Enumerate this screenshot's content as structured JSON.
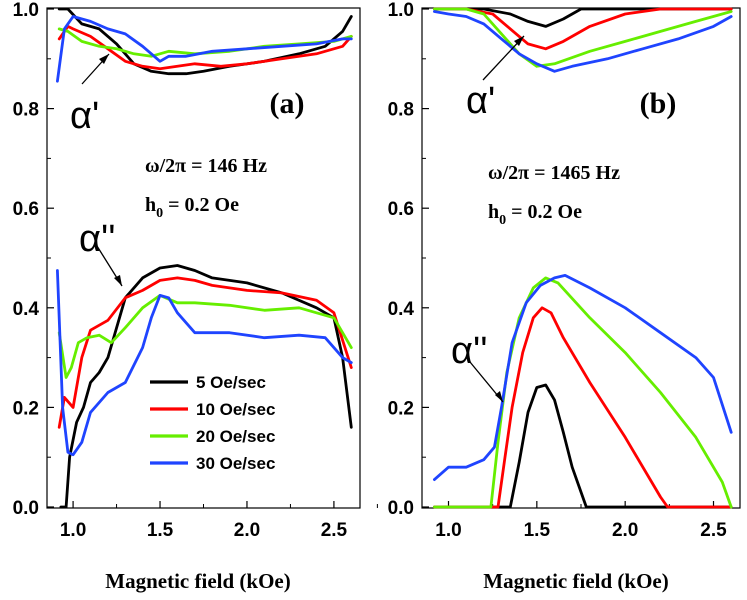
{
  "chart_data": [
    {
      "type": "line",
      "panel_label": "(a)",
      "xlabel": "Magnetic field (kOe)",
      "xlim": [
        0.85,
        2.65
      ],
      "ylim": [
        0,
        1.0
      ],
      "xticks": [
        "1.0",
        "1.5",
        "2.0",
        "2.5"
      ],
      "yticks": [
        "0.0",
        "0.2",
        "0.4",
        "0.6",
        "0.8",
        "1.0"
      ],
      "annotations": [
        "α'",
        "α''",
        "ω/2π = 146 Hz",
        "h0 = 0.2 Oe"
      ],
      "legend": [
        "5 Oe/sec",
        "10 Oe/sec",
        "20 Oe/sec",
        "30 Oe/sec"
      ],
      "series": [
        {
          "name": "5 Oe/sec",
          "color": "#000000",
          "part": "alpha_prime",
          "x": [
            0.92,
            0.97,
            1.05,
            1.15,
            1.25,
            1.35,
            1.45,
            1.55,
            1.65,
            1.75,
            1.9,
            2.1,
            2.3,
            2.45,
            2.55,
            2.6
          ],
          "y": [
            1.0,
            1.0,
            0.97,
            0.96,
            0.93,
            0.89,
            0.875,
            0.87,
            0.87,
            0.875,
            0.885,
            0.895,
            0.91,
            0.925,
            0.955,
            0.985
          ]
        },
        {
          "name": "10 Oe/sec",
          "color": "#ff0000",
          "part": "alpha_prime",
          "x": [
            0.92,
            0.97,
            1.0,
            1.1,
            1.2,
            1.3,
            1.4,
            1.5,
            1.6,
            1.7,
            1.85,
            2.0,
            2.2,
            2.4,
            2.55,
            2.6
          ],
          "y": [
            0.94,
            0.965,
            0.96,
            0.945,
            0.92,
            0.895,
            0.885,
            0.88,
            0.885,
            0.89,
            0.885,
            0.89,
            0.9,
            0.91,
            0.925,
            0.945
          ]
        },
        {
          "name": "20 Oe/sec",
          "color": "#66ee00",
          "part": "alpha_prime",
          "x": [
            0.92,
            0.97,
            1.05,
            1.15,
            1.25,
            1.35,
            1.45,
            1.55,
            1.7,
            1.9,
            2.1,
            2.3,
            2.5,
            2.6
          ],
          "y": [
            0.96,
            0.955,
            0.935,
            0.925,
            0.92,
            0.91,
            0.905,
            0.915,
            0.91,
            0.915,
            0.925,
            0.93,
            0.935,
            0.945
          ]
        },
        {
          "name": "30 Oe/sec",
          "color": "#1f44ff",
          "part": "alpha_prime",
          "x": [
            0.91,
            0.95,
            1.0,
            1.1,
            1.2,
            1.3,
            1.4,
            1.5,
            1.55,
            1.65,
            1.8,
            2.0,
            2.2,
            2.4,
            2.55,
            2.6
          ],
          "y": [
            0.855,
            0.96,
            0.985,
            0.975,
            0.96,
            0.95,
            0.925,
            0.895,
            0.905,
            0.905,
            0.915,
            0.92,
            0.925,
            0.93,
            0.94,
            0.94
          ]
        },
        {
          "name": "5 Oe/sec",
          "color": "#000000",
          "part": "alpha_double_prime",
          "x": [
            0.93,
            0.96,
            0.98,
            1.02,
            1.06,
            1.1,
            1.15,
            1.2,
            1.3,
            1.4,
            1.5,
            1.6,
            1.7,
            1.8,
            2.0,
            2.2,
            2.4,
            2.5,
            2.55,
            2.6
          ],
          "y": [
            0.0,
            0.0,
            0.1,
            0.17,
            0.2,
            0.25,
            0.27,
            0.3,
            0.42,
            0.46,
            0.48,
            0.485,
            0.475,
            0.46,
            0.45,
            0.43,
            0.4,
            0.38,
            0.3,
            0.16
          ]
        },
        {
          "name": "10 Oe/sec",
          "color": "#ff0000",
          "part": "alpha_double_prime",
          "x": [
            0.92,
            0.95,
            1.0,
            1.05,
            1.1,
            1.2,
            1.3,
            1.4,
            1.5,
            1.6,
            1.7,
            1.8,
            2.0,
            2.2,
            2.4,
            2.5,
            2.6
          ],
          "y": [
            0.16,
            0.22,
            0.2,
            0.3,
            0.355,
            0.375,
            0.42,
            0.435,
            0.455,
            0.46,
            0.455,
            0.445,
            0.435,
            0.43,
            0.415,
            0.39,
            0.28
          ]
        },
        {
          "name": "20 Oe/sec",
          "color": "#66ee00",
          "part": "alpha_double_prime",
          "x": [
            0.92,
            0.96,
            0.99,
            1.03,
            1.08,
            1.15,
            1.22,
            1.3,
            1.4,
            1.5,
            1.6,
            1.7,
            1.9,
            2.1,
            2.3,
            2.5,
            2.6
          ],
          "y": [
            0.35,
            0.26,
            0.28,
            0.33,
            0.34,
            0.345,
            0.33,
            0.36,
            0.4,
            0.425,
            0.41,
            0.41,
            0.405,
            0.395,
            0.4,
            0.38,
            0.32
          ]
        },
        {
          "name": "30 Oe/sec",
          "color": "#1f44ff",
          "part": "alpha_double_prime",
          "x": [
            0.91,
            0.94,
            0.97,
            1.0,
            1.05,
            1.1,
            1.2,
            1.3,
            1.4,
            1.45,
            1.5,
            1.55,
            1.6,
            1.7,
            1.9,
            2.1,
            2.3,
            2.45,
            2.55,
            2.6
          ],
          "y": [
            0.475,
            0.2,
            0.11,
            0.105,
            0.13,
            0.19,
            0.23,
            0.25,
            0.32,
            0.38,
            0.425,
            0.42,
            0.39,
            0.35,
            0.35,
            0.34,
            0.345,
            0.34,
            0.3,
            0.29
          ]
        }
      ]
    },
    {
      "type": "line",
      "panel_label": "(b)",
      "xlabel": "Magnetic field (kOe)",
      "xlim": [
        0.85,
        2.65
      ],
      "ylim": [
        0,
        1.0
      ],
      "xticks": [
        "1.0",
        "1.5",
        "2.0",
        "2.5"
      ],
      "yticks": [
        "0.0",
        "0.2",
        "0.4",
        "0.6",
        "0.8",
        "1.0"
      ],
      "annotations": [
        "α'",
        "α''",
        "ω/2π = 1465 Hz",
        "h0 = 0.2 Oe"
      ],
      "series": [
        {
          "name": "5 Oe/sec",
          "color": "#000000",
          "part": "alpha_prime",
          "x": [
            0.92,
            1.2,
            1.35,
            1.45,
            1.55,
            1.65,
            1.75,
            2.0,
            2.6
          ],
          "y": [
            1.0,
            1.0,
            0.99,
            0.975,
            0.965,
            0.98,
            1.0,
            1.0,
            1.0
          ]
        },
        {
          "name": "10 Oe/sec",
          "color": "#ff0000",
          "part": "alpha_prime",
          "x": [
            0.92,
            1.1,
            1.25,
            1.35,
            1.45,
            1.55,
            1.65,
            1.8,
            2.0,
            2.2,
            2.3,
            2.6
          ],
          "y": [
            1.0,
            1.0,
            0.99,
            0.96,
            0.93,
            0.92,
            0.935,
            0.965,
            0.99,
            1.0,
            1.0,
            1.0
          ]
        },
        {
          "name": "20 Oe/sec",
          "color": "#66ee00",
          "part": "alpha_prime",
          "x": [
            0.92,
            1.1,
            1.2,
            1.3,
            1.4,
            1.5,
            1.6,
            1.8,
            2.0,
            2.2,
            2.4,
            2.6
          ],
          "y": [
            1.0,
            1.0,
            0.99,
            0.95,
            0.91,
            0.885,
            0.89,
            0.915,
            0.935,
            0.955,
            0.975,
            0.995
          ]
        },
        {
          "name": "30 Oe/sec",
          "color": "#1f44ff",
          "part": "alpha_prime",
          "x": [
            0.92,
            1.0,
            1.1,
            1.2,
            1.3,
            1.4,
            1.5,
            1.6,
            1.7,
            1.9,
            2.1,
            2.3,
            2.5,
            2.6
          ],
          "y": [
            0.995,
            0.99,
            0.985,
            0.97,
            0.94,
            0.91,
            0.89,
            0.875,
            0.885,
            0.9,
            0.92,
            0.94,
            0.965,
            0.985
          ]
        },
        {
          "name": "5 Oe/sec",
          "color": "#000000",
          "part": "alpha_double_prime",
          "x": [
            0.92,
            1.35,
            1.4,
            1.45,
            1.5,
            1.55,
            1.6,
            1.65,
            1.7,
            1.78,
            1.85,
            2.6
          ],
          "y": [
            0.0,
            0.0,
            0.09,
            0.19,
            0.24,
            0.245,
            0.215,
            0.15,
            0.08,
            0.0,
            0.0,
            0.0
          ]
        },
        {
          "name": "10 Oe/sec",
          "color": "#ff0000",
          "part": "alpha_double_prime",
          "x": [
            0.92,
            1.28,
            1.32,
            1.36,
            1.42,
            1.48,
            1.53,
            1.58,
            1.65,
            1.8,
            2.0,
            2.2,
            2.24,
            2.6
          ],
          "y": [
            0.0,
            0.0,
            0.1,
            0.2,
            0.31,
            0.38,
            0.4,
            0.39,
            0.34,
            0.25,
            0.14,
            0.02,
            0.0,
            0.0
          ]
        },
        {
          "name": "20 Oe/sec",
          "color": "#66ee00",
          "part": "alpha_double_prime",
          "x": [
            0.92,
            1.24,
            1.28,
            1.33,
            1.4,
            1.48,
            1.55,
            1.62,
            1.8,
            2.0,
            2.2,
            2.4,
            2.55,
            2.6
          ],
          "y": [
            0.0,
            0.0,
            0.13,
            0.27,
            0.38,
            0.44,
            0.46,
            0.45,
            0.38,
            0.31,
            0.23,
            0.14,
            0.05,
            0.0
          ]
        },
        {
          "name": "30 Oe/sec",
          "color": "#1f44ff",
          "part": "alpha_double_prime",
          "x": [
            0.92,
            1.0,
            1.1,
            1.2,
            1.26,
            1.3,
            1.36,
            1.44,
            1.52,
            1.6,
            1.66,
            1.8,
            2.0,
            2.2,
            2.4,
            2.5,
            2.6
          ],
          "y": [
            0.055,
            0.08,
            0.08,
            0.095,
            0.12,
            0.2,
            0.33,
            0.41,
            0.445,
            0.46,
            0.465,
            0.44,
            0.4,
            0.35,
            0.3,
            0.26,
            0.15
          ]
        }
      ]
    }
  ]
}
